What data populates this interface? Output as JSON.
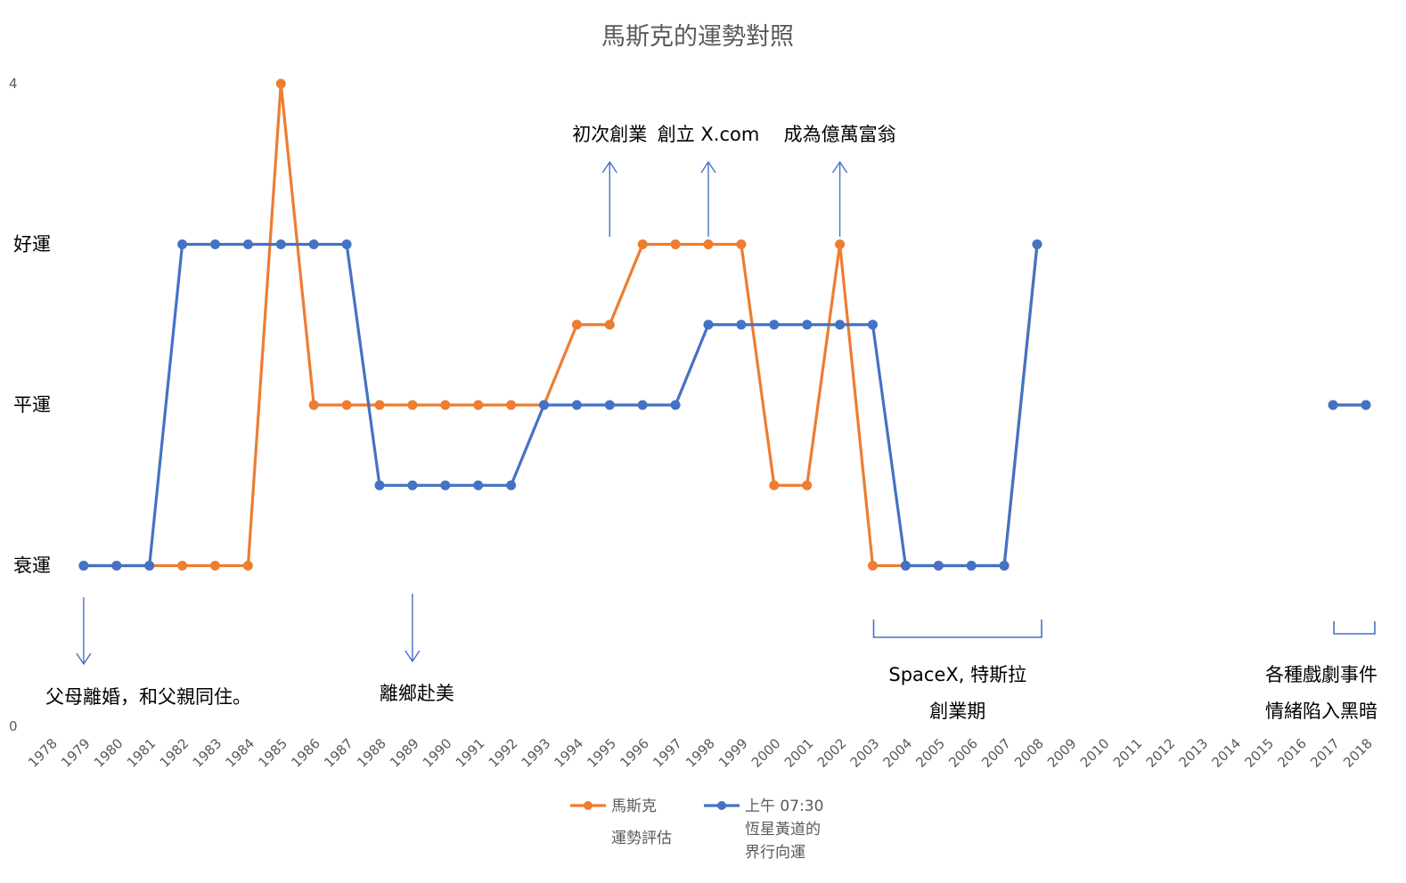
{
  "chart_data": {
    "type": "line",
    "title": "馬斯克的運勢對照",
    "y_axis": {
      "min": 0,
      "max": 4,
      "tick_labels": [
        {
          "value": 0,
          "label": "0",
          "style": "num"
        },
        {
          "value": 1,
          "label": "衰運",
          "style": "txt"
        },
        {
          "value": 2,
          "label": "平運",
          "style": "txt"
        },
        {
          "value": 3,
          "label": "好運",
          "style": "txt"
        },
        {
          "value": 4,
          "label": "4",
          "style": "num"
        }
      ]
    },
    "categories": [
      "1978",
      "1979",
      "1980",
      "1981",
      "1982",
      "1983",
      "1984",
      "1985",
      "1986",
      "1987",
      "1988",
      "1989",
      "1990",
      "1991",
      "1992",
      "1993",
      "1994",
      "1995",
      "1996",
      "1997",
      "1998",
      "1999",
      "2000",
      "2001",
      "2002",
      "2003",
      "2004",
      "2005",
      "2006",
      "2007",
      "2008",
      "2009",
      "2010",
      "2011",
      "2012",
      "2013",
      "2014",
      "2015",
      "2016",
      "2017",
      "2018"
    ],
    "series": [
      {
        "name": "馬斯克 運勢評估",
        "color": "#ED7D31",
        "values": [
          null,
          1,
          1,
          1,
          1,
          1,
          1,
          4,
          2,
          2,
          2,
          2,
          2,
          2,
          2,
          2,
          2.5,
          2.5,
          3,
          3,
          3,
          3,
          1.5,
          1.5,
          3,
          1,
          1,
          1,
          1,
          1,
          3,
          null,
          null,
          null,
          null,
          null,
          null,
          null,
          null,
          2,
          2
        ]
      },
      {
        "name": "上午 07:30 恆星黃道的 界行向運",
        "color": "#4472C4",
        "values": [
          null,
          1,
          1,
          1,
          3,
          3,
          3,
          3,
          3,
          3,
          1.5,
          1.5,
          1.5,
          1.5,
          1.5,
          2,
          2,
          2,
          2,
          2,
          2.5,
          2.5,
          2.5,
          2.5,
          2.5,
          2.5,
          1,
          1,
          1,
          1,
          3,
          null,
          null,
          null,
          null,
          null,
          null,
          null,
          null,
          2,
          2
        ]
      }
    ],
    "legend": {
      "position": "bottom",
      "entries": [
        {
          "lines": [
            "馬斯克",
            "運勢評估"
          ],
          "color": "#ED7D31"
        },
        {
          "lines": [
            "上午 07:30",
            "恆星黃道的",
            "界行向運"
          ],
          "color": "#4472C4"
        }
      ]
    },
    "annotations": {
      "up_arrows": [
        {
          "year": "1995",
          "label": "初次創業"
        },
        {
          "year": "1998",
          "label": "創立 X.com"
        },
        {
          "year": "2002",
          "label": "成為億萬富翁"
        }
      ],
      "down_arrows": [
        {
          "year": "1979",
          "label": "父母離婚，和父親同住。"
        },
        {
          "year": "1989",
          "label": "離鄉赴美"
        }
      ],
      "brackets": [
        {
          "from": "2003",
          "to": "2008",
          "lines": [
            "SpaceX, 特斯拉",
            "創業期"
          ]
        },
        {
          "from": "2017",
          "to": "2018",
          "lines": [
            "各種戲劇事件",
            "情緒陷入黑暗"
          ]
        }
      ]
    },
    "grid": false
  }
}
